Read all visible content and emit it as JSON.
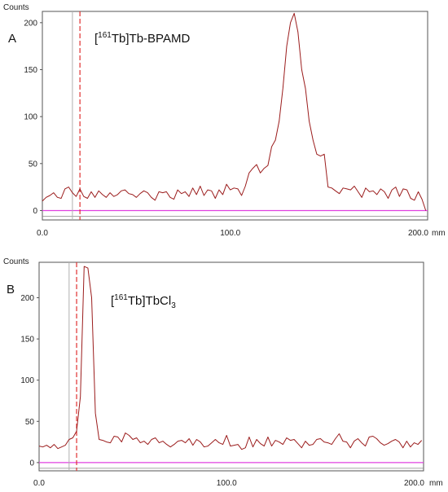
{
  "chart_data": [
    {
      "type": "line",
      "panel": "A",
      "annotation": {
        "bracket_open": "[",
        "superscript": "161",
        "element": "Tb",
        "bracket_close": "]",
        "rest": "Tb-BPAMD"
      },
      "ylabel": "Counts",
      "xunit": "mm",
      "xlim": [
        0,
        205
      ],
      "ylim": [
        -10,
        212
      ],
      "xticks": [
        "0.0",
        "100.0",
        "200.0"
      ],
      "xtick_values": [
        0,
        100,
        200
      ],
      "yticks": [
        0,
        50,
        100,
        150,
        200
      ],
      "origin_marker_x": 16,
      "front_marker_x": 20,
      "baseline_color": "#e040e0",
      "series": [
        {
          "color": "#9b1c1c",
          "x": [
            0,
            2,
            4,
            6,
            8,
            10,
            12,
            14,
            16,
            18,
            20,
            22,
            24,
            26,
            28,
            30,
            32,
            34,
            36,
            38,
            40,
            42,
            44,
            46,
            48,
            50,
            52,
            54,
            56,
            58,
            60,
            62,
            64,
            66,
            68,
            70,
            72,
            74,
            76,
            78,
            80,
            82,
            84,
            86,
            88,
            90,
            92,
            94,
            96,
            98,
            100,
            102,
            104,
            106,
            108,
            110,
            112,
            114,
            116,
            118,
            120,
            122,
            124,
            126,
            128,
            130,
            132,
            134,
            136,
            138,
            140,
            142,
            144,
            146,
            148,
            150,
            152,
            154,
            156,
            158,
            160,
            162,
            164,
            166,
            168,
            170,
            172,
            174,
            176,
            178,
            180,
            182,
            184,
            186,
            188,
            190,
            192,
            194,
            196,
            198,
            200,
            202,
            204
          ],
          "y": [
            10,
            14,
            16,
            19,
            14,
            13,
            23,
            25,
            19,
            15,
            23,
            15,
            13,
            20,
            14,
            21,
            17,
            14,
            19,
            15,
            17,
            21,
            22,
            18,
            17,
            14,
            18,
            21,
            19,
            14,
            11,
            20,
            19,
            20,
            14,
            12,
            22,
            18,
            20,
            15,
            24,
            17,
            26,
            16,
            22,
            21,
            13,
            22,
            17,
            28,
            22,
            24,
            23,
            16,
            26,
            40,
            45,
            49,
            40,
            45,
            48,
            68,
            75,
            95,
            130,
            175,
            200,
            210,
            190,
            150,
            130,
            95,
            75,
            60,
            58,
            60,
            25,
            24,
            21,
            18,
            24,
            23,
            22,
            26,
            20,
            14,
            24,
            20,
            21,
            17,
            23,
            20,
            13,
            22,
            25,
            15,
            23,
            22,
            13,
            11,
            20,
            12,
            0
          ]
        }
      ]
    },
    {
      "type": "line",
      "panel": "B",
      "annotation": {
        "bracket_open": "[",
        "superscript": "161",
        "element": "Tb",
        "bracket_close": "]",
        "rest": "TbCl",
        "subscript": "3"
      },
      "ylabel": "Counts",
      "xunit": "mm",
      "xlim": [
        0,
        205
      ],
      "ylim": [
        -10,
        243
      ],
      "xticks": [
        "0.0",
        "100.0",
        "200.0"
      ],
      "xtick_values": [
        0,
        100,
        200
      ],
      "yticks": [
        0,
        50,
        100,
        150,
        200
      ],
      "origin_marker_x": 16,
      "front_marker_x": 20,
      "baseline_color": "#e040e0",
      "series": [
        {
          "color": "#9b1c1c",
          "x": [
            0,
            2,
            4,
            6,
            8,
            10,
            12,
            14,
            16,
            18,
            20,
            22,
            24,
            26,
            28,
            30,
            32,
            34,
            36,
            38,
            40,
            42,
            44,
            46,
            48,
            50,
            52,
            54,
            56,
            58,
            60,
            62,
            64,
            66,
            68,
            70,
            72,
            74,
            76,
            78,
            80,
            82,
            84,
            86,
            88,
            90,
            92,
            94,
            96,
            98,
            100,
            102,
            104,
            106,
            108,
            110,
            112,
            114,
            116,
            118,
            120,
            122,
            124,
            126,
            128,
            130,
            132,
            134,
            136,
            138,
            140,
            142,
            144,
            146,
            148,
            150,
            152,
            154,
            156,
            158,
            160,
            162,
            164,
            166,
            168,
            170,
            172,
            174,
            176,
            178,
            180,
            182,
            184,
            186,
            188,
            190,
            192,
            194,
            196,
            198,
            200,
            202,
            204
          ],
          "y": [
            20,
            19,
            21,
            18,
            22,
            17,
            19,
            21,
            28,
            30,
            38,
            80,
            238,
            236,
            200,
            60,
            28,
            27,
            25,
            24,
            32,
            31,
            25,
            36,
            33,
            28,
            30,
            24,
            26,
            22,
            28,
            30,
            24,
            26,
            22,
            19,
            22,
            26,
            27,
            24,
            29,
            21,
            28,
            25,
            19,
            20,
            24,
            28,
            24,
            22,
            33,
            20,
            21,
            22,
            16,
            18,
            31,
            19,
            28,
            23,
            20,
            31,
            20,
            27,
            25,
            22,
            30,
            27,
            28,
            23,
            18,
            26,
            21,
            22,
            28,
            29,
            25,
            24,
            22,
            29,
            35,
            26,
            25,
            18,
            26,
            29,
            24,
            20,
            31,
            32,
            29,
            24,
            21,
            23,
            26,
            28,
            25,
            18,
            26,
            19,
            24,
            22,
            27
          ]
        }
      ]
    }
  ]
}
